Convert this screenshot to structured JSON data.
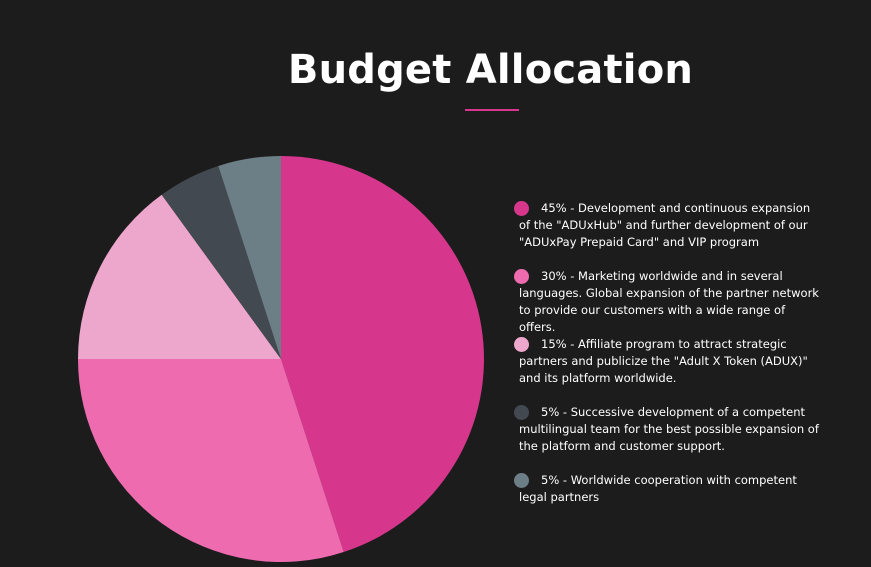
{
  "header": {
    "title": "Budget Allocation",
    "accent_color": "#d6378c"
  },
  "chart_data": {
    "type": "pie",
    "title": "Budget Allocation",
    "slices": [
      {
        "value": 45,
        "label": "45% - Development and continuous expansion of the \"ADUxHub\" and further development of our \"ADUxPay Prepaid Card\" and VIP program",
        "color": "#d6378c"
      },
      {
        "value": 30,
        "label": "30% - Marketing worldwide and in several languages. Global expansion of the partner network to provide our customers with a wide range of offers.",
        "color": "#ee6bb0"
      },
      {
        "value": 15,
        "label": "15% - Affiliate program to attract strategic partners and publicize the \"Adult X Token (ADUX)\" and its platform worldwide.",
        "color": "#eda6cc"
      },
      {
        "value": 5,
        "label": "5% - Successive development of a competent multilingual team for the best possible expansion of the platform and customer support.",
        "color": "#434950"
      },
      {
        "value": 5,
        "label": "5% - Worldwide cooperation with competent legal partners",
        "color": "#6c7e86"
      }
    ]
  }
}
